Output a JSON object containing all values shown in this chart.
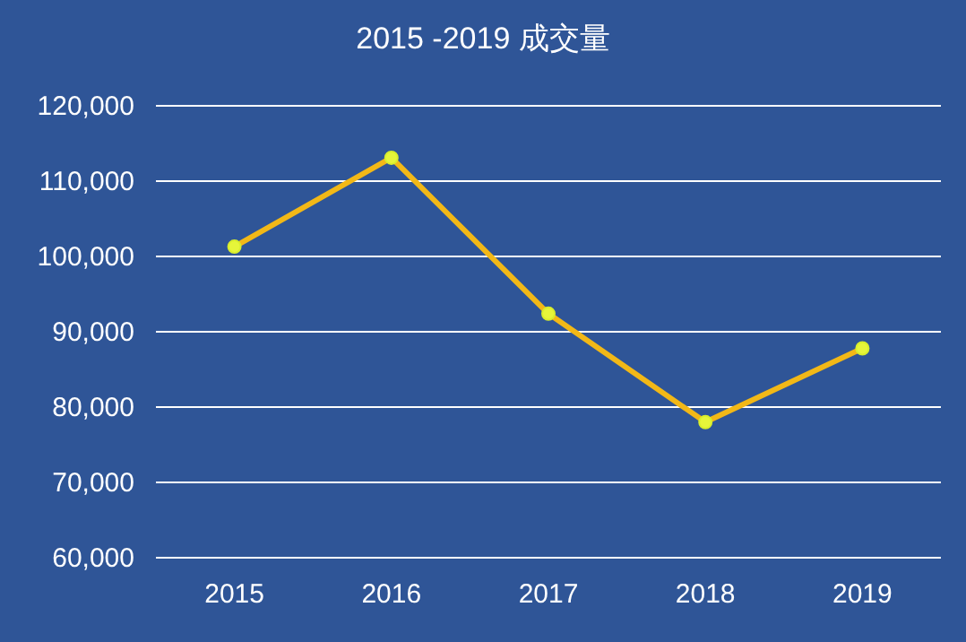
{
  "chart_data": {
    "type": "line",
    "title": "2015 -2019 成交量",
    "categories": [
      "2015",
      "2016",
      "2017",
      "2018",
      "2019"
    ],
    "series": [
      {
        "color": "#f2b817",
        "values": [
          101300,
          113100,
          92400,
          78000,
          87800
        ]
      }
    ],
    "ylim": [
      60000,
      120000
    ],
    "yticks": [
      {
        "value": 60000,
        "label": "60,000"
      },
      {
        "value": 70000,
        "label": "70,000"
      },
      {
        "value": 80000,
        "label": "80,000"
      },
      {
        "value": 90000,
        "label": "90,000"
      },
      {
        "value": 100000,
        "label": "100,000"
      },
      {
        "value": 110000,
        "label": "110,000"
      },
      {
        "value": 120000,
        "label": "120,000"
      }
    ],
    "grid": "y",
    "marker": "circle",
    "line_style": "solid"
  }
}
